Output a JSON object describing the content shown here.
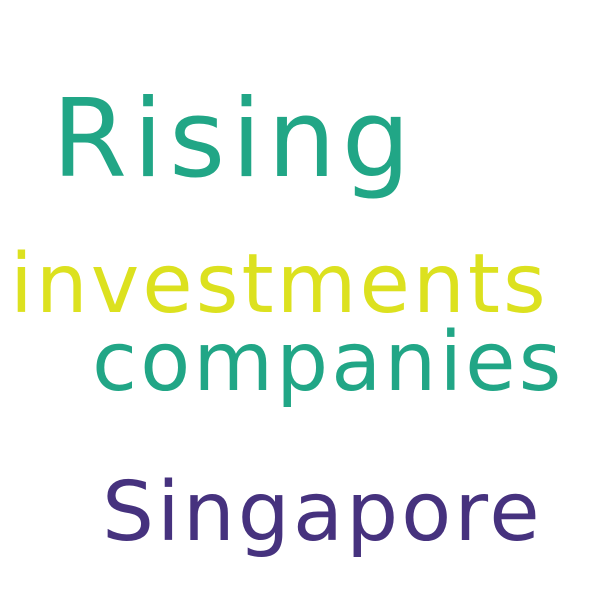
{
  "words": [
    {
      "text": "Rising",
      "color": "#21a686"
    },
    {
      "text": "investments",
      "color": "#dce11f"
    },
    {
      "text": "companies",
      "color": "#21a686"
    },
    {
      "text": "Singapore",
      "color": "#46327e"
    }
  ]
}
